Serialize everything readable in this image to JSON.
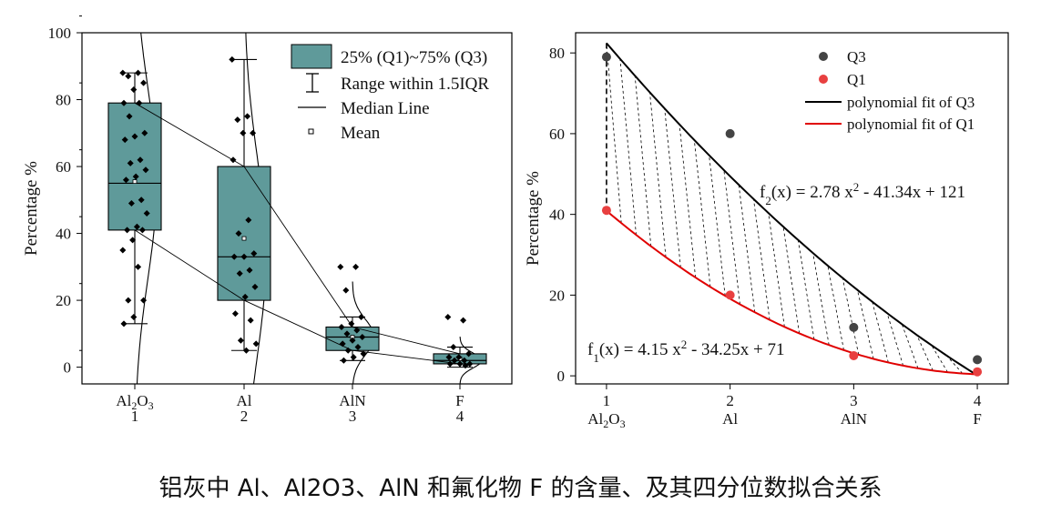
{
  "caption": "铝灰中 Al、Al2O3、AlN 和氟化物 F 的含量、及其四分位数拟合关系",
  "chart_data": [
    {
      "type": "box",
      "ylabel": "Percentage %",
      "ylim": [
        0,
        100
      ],
      "yticks": [
        "0",
        "20",
        "40",
        "60",
        "80",
        "100"
      ],
      "categories": [
        {
          "name": "Al2O3",
          "num": "1"
        },
        {
          "name": "Al",
          "num": "2"
        },
        {
          "name": "AlN",
          "num": "3"
        },
        {
          "name": "F",
          "num": "4"
        }
      ],
      "legend": {
        "position": "top-right",
        "box": "25% (Q1)~75% (Q3)",
        "whisker": "Range within 1.5IQR",
        "median": "Median Line",
        "mean": "Mean"
      },
      "box_color": "#5f9a9a",
      "boxes": [
        {
          "q1": 41,
          "median": 55,
          "q3": 79,
          "mean": 55.5,
          "whisker_low": 13,
          "whisker_high": 88,
          "points": [
            88,
            88,
            87,
            85,
            83,
            79,
            79,
            75,
            70,
            69,
            68,
            62,
            61,
            59,
            57,
            56,
            50,
            49,
            46,
            42,
            41,
            41,
            38,
            35,
            30,
            20,
            20,
            15,
            13
          ]
        },
        {
          "q1": 20,
          "median": 33,
          "q3": 60,
          "mean": 38.5,
          "whisker_low": 5,
          "whisker_high": 92,
          "points": [
            92,
            75,
            74,
            70,
            70,
            62,
            44,
            40,
            34,
            33,
            33,
            29,
            28,
            24,
            21,
            16,
            14,
            8,
            7,
            5
          ]
        },
        {
          "q1": 5,
          "median": 9,
          "q3": 12,
          "mean": 9,
          "whisker_low": 2,
          "whisker_high": 15,
          "points": [
            30,
            30,
            23,
            15,
            13,
            12,
            11,
            10,
            9,
            8,
            7,
            6,
            5,
            4,
            3,
            2
          ]
        },
        {
          "q1": 1,
          "median": 2,
          "q3": 4,
          "mean": 2.5,
          "whisker_low": 0,
          "whisker_high": 6,
          "points": [
            15,
            14,
            6,
            4,
            3,
            3,
            2,
            2,
            1,
            1,
            1,
            0.5
          ]
        }
      ]
    },
    {
      "type": "scatter",
      "ylabel": "Percentage %",
      "xlim": [
        0.75,
        4.25
      ],
      "ylim": [
        -2,
        85
      ],
      "yticks": [
        "0",
        "20",
        "40",
        "60",
        "80"
      ],
      "xticks": [
        {
          "num": "1",
          "name": "Al2O3"
        },
        {
          "num": "2",
          "name": "Al"
        },
        {
          "num": "3",
          "name": "AlN"
        },
        {
          "num": "4",
          "name": "F"
        }
      ],
      "series": [
        {
          "name": "Q3",
          "color": "#444444",
          "x": [
            1,
            2,
            3,
            4
          ],
          "y": [
            79,
            60,
            12,
            4
          ]
        },
        {
          "name": "Q1",
          "color": "#e84040",
          "x": [
            1,
            2,
            3,
            4
          ],
          "y": [
            41,
            20,
            5,
            1
          ]
        }
      ],
      "fits": [
        {
          "name": "polynomial fit of Q3",
          "color": "#000000",
          "a": 2.78,
          "b": -41.34,
          "c": 121,
          "label_pre": "f",
          "label_sub": "2",
          "label_mid": "(x) = 2.78 x",
          "label_sup": "2",
          "label_post": " - 41.34x + 121"
        },
        {
          "name": "polynomial fit of Q1",
          "color": "#e00000",
          "a": 4.15,
          "b": -34.25,
          "c": 71,
          "label_pre": "f",
          "label_sub": "1",
          "label_mid": "(x) = 4.15 x",
          "label_sup": "2",
          "label_post": " - 34.25x + 71"
        }
      ],
      "legend_position": "top-right"
    }
  ]
}
